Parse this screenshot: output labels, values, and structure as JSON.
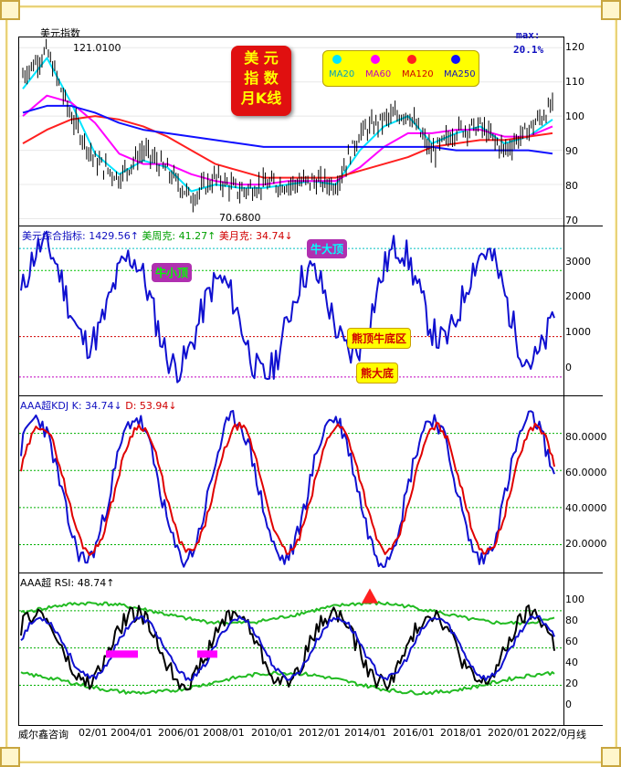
{
  "panel1": {
    "title": "美元指数",
    "max_label": "121.0100",
    "min_label": "70.6800",
    "box_title_lines": [
      "美 元",
      "指 数",
      "月K线"
    ],
    "max_tag": "max:",
    "max_pct": "20.1%",
    "legend": [
      {
        "label": "MA20",
        "color": "#00e5ff"
      },
      {
        "label": "MA60",
        "color": "#ff00ff"
      },
      {
        "label": "MA120",
        "color": "#ff2020"
      },
      {
        "label": "MA250",
        "color": "#1010ff"
      }
    ],
    "ticks": [
      "120",
      "110",
      "100",
      "90",
      "80",
      "70"
    ]
  },
  "panel2": {
    "header": [
      {
        "text": "美元综合指标: 1429.56↑",
        "color": "#1010c0"
      },
      {
        "text": "美周克: 41.27↑",
        "color": "#00a000"
      },
      {
        "text": "美月克: 34.74↓",
        "color": "#d00000"
      }
    ],
    "badges": [
      "牛大顶",
      "牛小顶",
      "熊顶牛底区",
      "熊大底"
    ],
    "ticks": [
      "3000",
      "2000",
      "1000",
      "0"
    ]
  },
  "panel3": {
    "header": [
      {
        "text": "AAA超KDJ K: 34.74↓",
        "color": "#1010c0"
      },
      {
        "text": "D: 53.94↓",
        "color": "#d00000"
      }
    ],
    "ticks": [
      "80.0000",
      "60.0000",
      "40.0000",
      "20.0000"
    ]
  },
  "panel4": {
    "header": [
      {
        "text": "AAA超 RSI: 48.74↑",
        "color": "#000000"
      }
    ],
    "ticks": [
      "100",
      "80",
      "60",
      "40",
      "20",
      "0"
    ]
  },
  "footer": {
    "source": "威尔鑫咨询",
    "x_labels": [
      "02/01",
      "2004/01",
      "2006/01",
      "2008/01",
      "2010/01",
      "2012/01",
      "2014/01",
      "2016/01",
      "2018/01",
      "2020/01",
      "2022/0"
    ],
    "period": "月线"
  },
  "chart_data": {
    "type": "line",
    "title": "美元指数 月K线",
    "x": [
      "2001/01",
      "2002/01",
      "2003/01",
      "2004/01",
      "2005/01",
      "2006/01",
      "2007/01",
      "2008/01",
      "2009/01",
      "2010/01",
      "2011/01",
      "2012/01",
      "2013/01",
      "2014/01",
      "2015/01",
      "2016/01",
      "2017/01",
      "2018/01",
      "2019/01",
      "2020/01",
      "2021/01",
      "2022/01",
      "2022/06"
    ],
    "ylim": [
      68,
      123
    ],
    "series": [
      {
        "name": "美元指数",
        "values": [
          112,
          119,
          100,
          87,
          82,
          90,
          84,
          76,
          82,
          78,
          80,
          80,
          81,
          80,
          95,
          99,
          101,
          89,
          96,
          97,
          90,
          96,
          103
        ]
      },
      {
        "name": "MA20",
        "values": [
          108,
          117,
          104,
          89,
          83,
          87,
          85,
          78,
          80,
          79,
          79,
          80,
          81,
          80,
          90,
          97,
          100,
          92,
          95,
          97,
          92,
          94,
          99
        ]
      },
      {
        "name": "MA60",
        "values": [
          100,
          106,
          104,
          98,
          89,
          86,
          86,
          83,
          81,
          80,
          80,
          81,
          81,
          81,
          85,
          91,
          95,
          95,
          96,
          96,
          94,
          94,
          97
        ]
      },
      {
        "name": "MA120",
        "values": [
          92,
          96,
          99,
          100,
          99,
          97,
          94,
          90,
          86,
          84,
          82,
          82,
          82,
          82,
          84,
          86,
          88,
          91,
          92,
          93,
          93,
          94,
          95
        ]
      },
      {
        "name": "MA250",
        "values": [
          101,
          103,
          103,
          101,
          98,
          96,
          95,
          94,
          93,
          92,
          91,
          91,
          91,
          91,
          91,
          91,
          91,
          91,
          90,
          90,
          90,
          90,
          89
        ]
      }
    ]
  }
}
